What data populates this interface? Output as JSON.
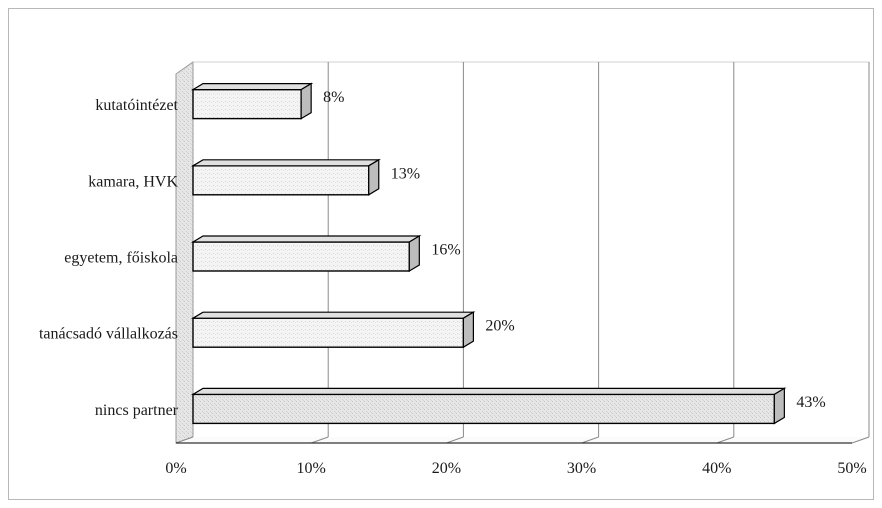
{
  "chart_data": {
    "type": "bar",
    "orientation": "horizontal",
    "three_d": true,
    "categories": [
      "kutatóintézet",
      "kamara, HVK",
      "egyetem, főiskola",
      "tanácsadó vállalkozás",
      "nincs partner"
    ],
    "values": [
      8,
      13,
      16,
      20,
      43
    ],
    "data_labels": [
      "8%",
      "13%",
      "16%",
      "20%",
      "43%"
    ],
    "xlim": [
      0,
      50
    ],
    "x_ticks": [
      0,
      10,
      20,
      30,
      40,
      50
    ],
    "x_tick_labels": [
      "0%",
      "10%",
      "20%",
      "30%",
      "40%",
      "50%"
    ],
    "title": "",
    "xlabel": "",
    "ylabel": "",
    "grid": "vertical",
    "legend": "none",
    "colors": {
      "bar_face": "#f2f2f2",
      "bar_side": "#bdbdbd",
      "bar_top": "#e0e0e0",
      "bar_outline": "#000000",
      "wall": "#c8c8c8",
      "grid": "#8a8a8a",
      "axis": "#333333"
    }
  }
}
